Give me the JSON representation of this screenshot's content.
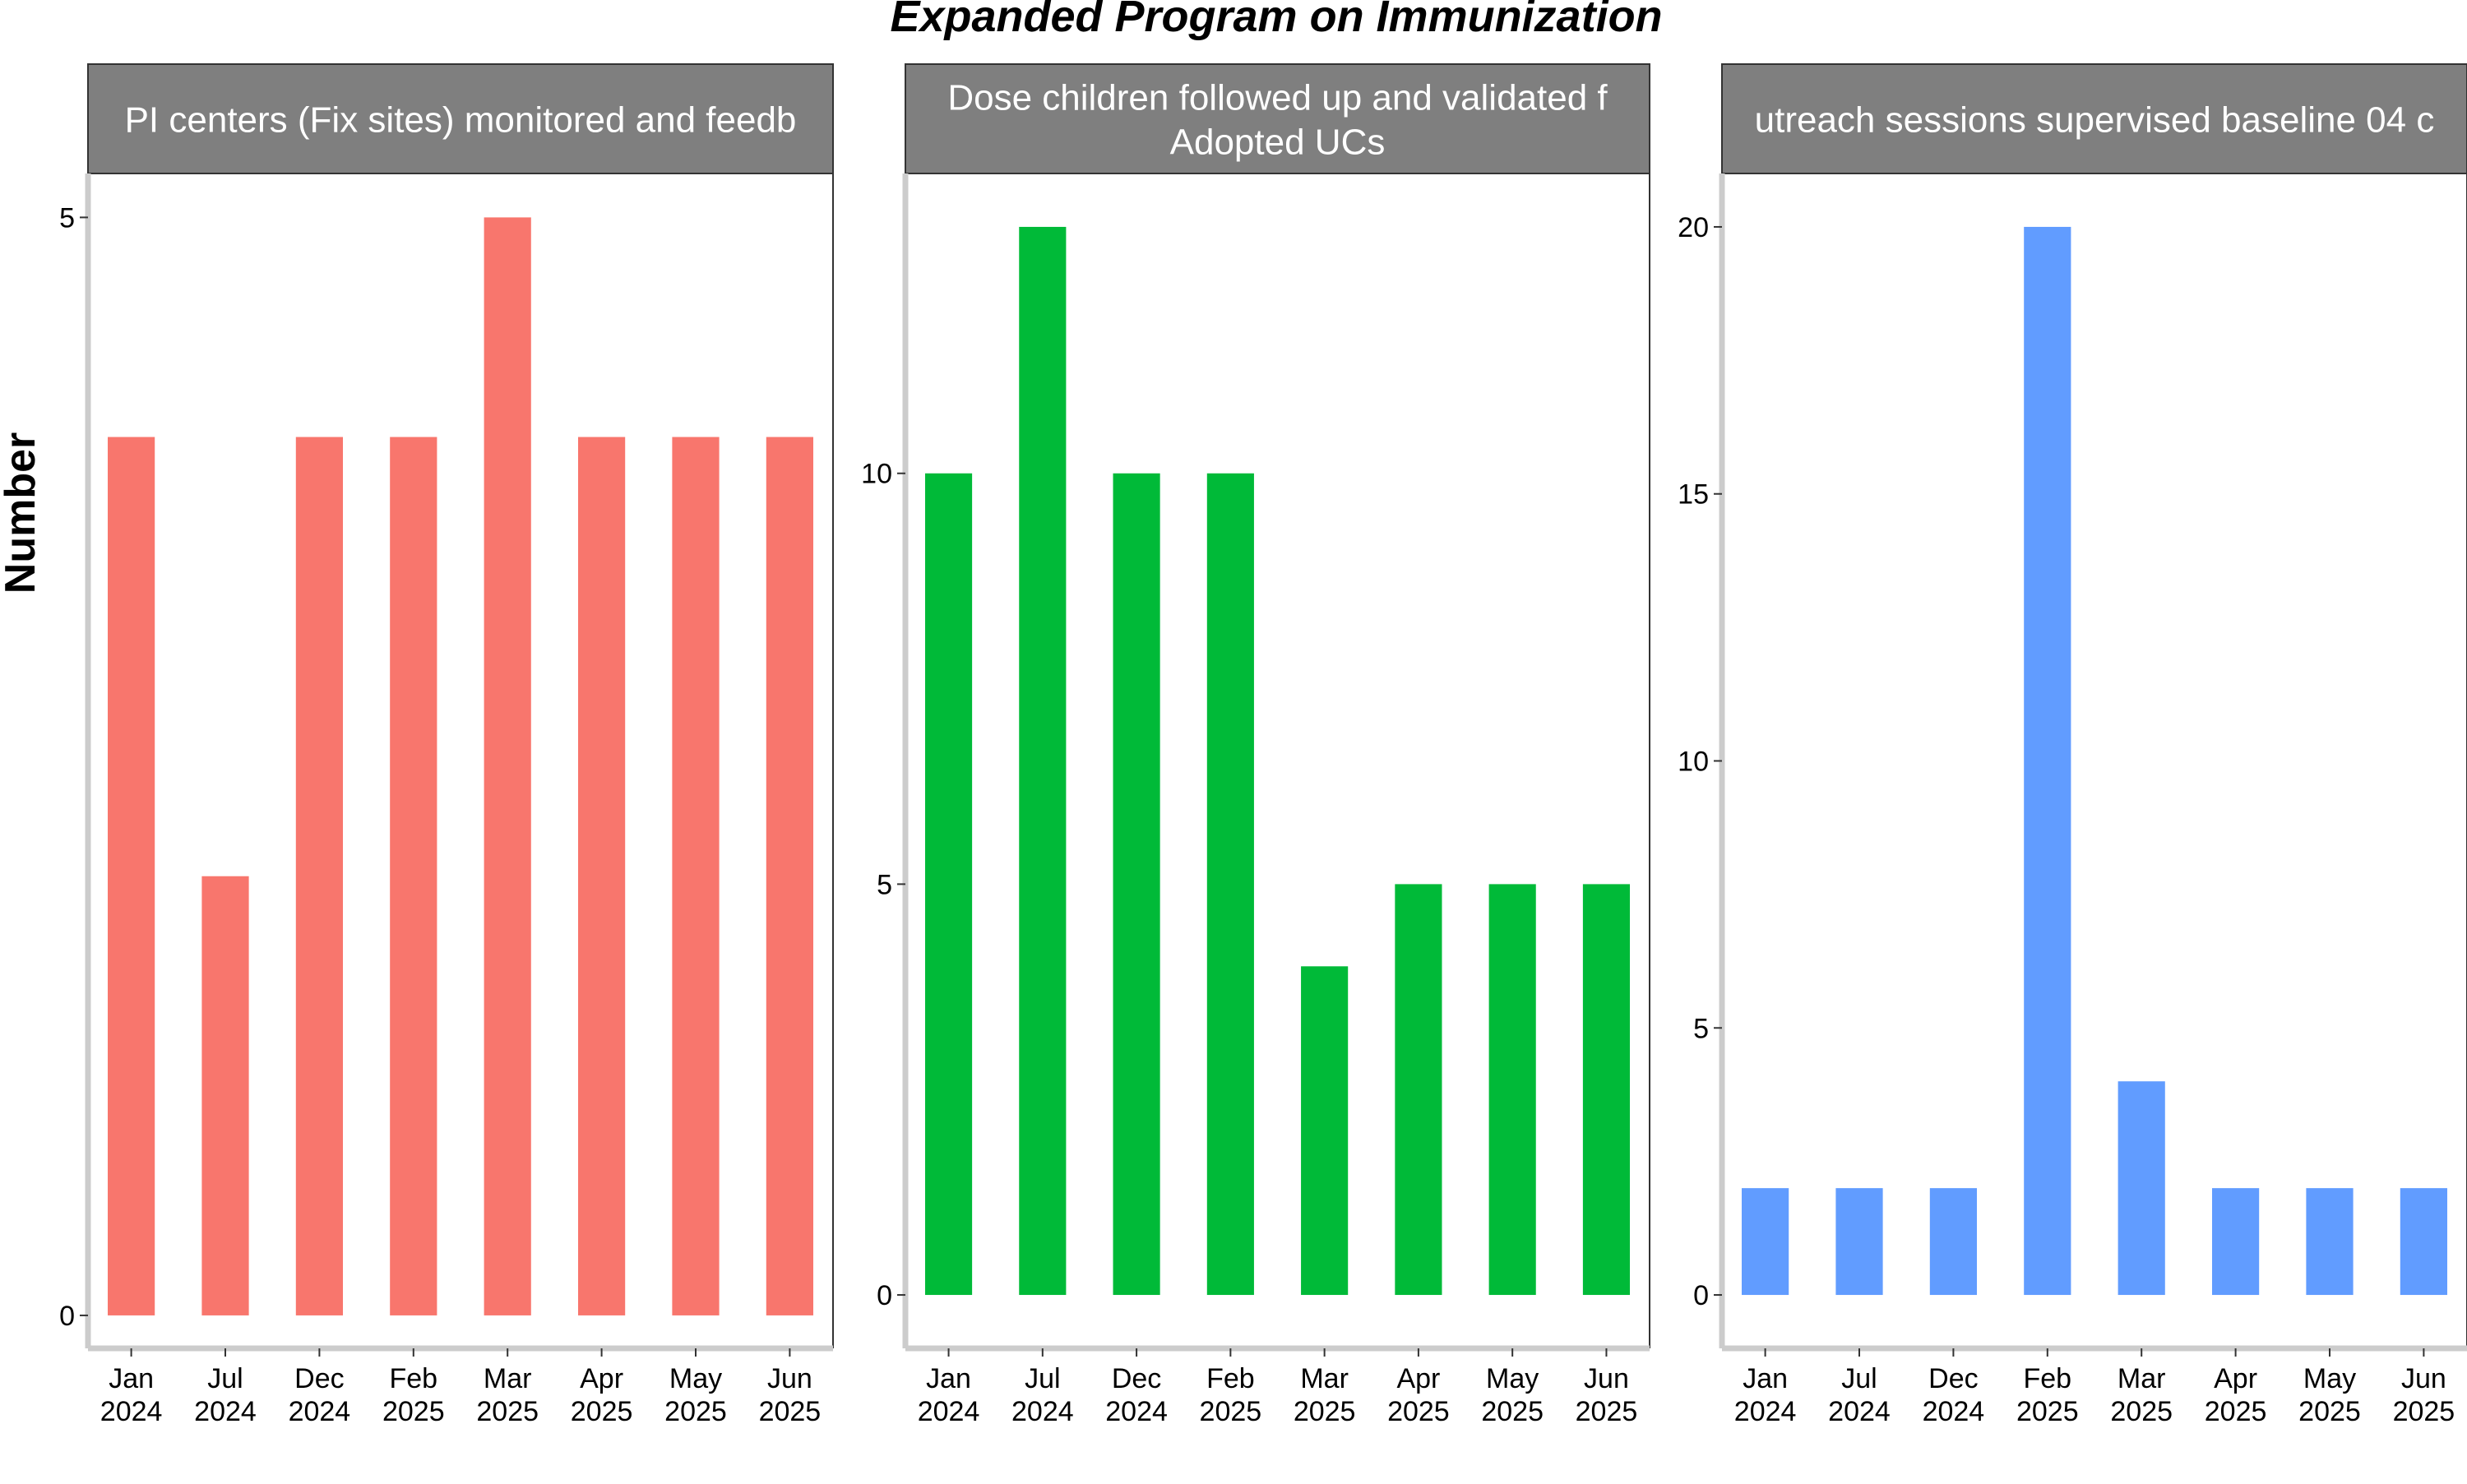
{
  "title": "Expanded Program on Immunization",
  "ylabel": "Number",
  "x_ticks": [
    {
      "month": "Jan",
      "year": "2024"
    },
    {
      "month": "Jul",
      "year": "2024"
    },
    {
      "month": "Dec",
      "year": "2024"
    },
    {
      "month": "Feb",
      "year": "2025"
    },
    {
      "month": "Mar",
      "year": "2025"
    },
    {
      "month": "Apr",
      "year": "2025"
    },
    {
      "month": "May",
      "year": "2025"
    },
    {
      "month": "Jun",
      "year": "2025"
    }
  ],
  "chart_data": [
    {
      "type": "bar",
      "strip_label": [
        "PI centers (Fix sites) monitored and feedb"
      ],
      "categories": [
        "Jan 2024",
        "Jul 2024",
        "Dec 2024",
        "Feb 2025",
        "Mar 2025",
        "Apr 2025",
        "May 2025",
        "Jun 2025"
      ],
      "values": [
        4,
        2,
        4,
        4,
        5,
        4,
        4,
        4
      ],
      "ylim": [
        -0.15,
        5.2
      ],
      "yticks": [
        0,
        5
      ],
      "color": "#F8766D"
    },
    {
      "type": "bar",
      "strip_label": [
        "Dose children followed up and validated f",
        "Adopted UCs"
      ],
      "categories": [
        "Jan 2024",
        "Jul 2024",
        "Dec 2024",
        "Feb 2025",
        "Mar 2025",
        "Apr 2025",
        "May 2025",
        "Jun 2025"
      ],
      "values": [
        10,
        13,
        10,
        10,
        4,
        5,
        5,
        5
      ],
      "ylim": [
        -0.65,
        13.65
      ],
      "yticks": [
        0,
        5,
        10
      ],
      "color": "#00BA38"
    },
    {
      "type": "bar",
      "strip_label": [
        "utreach sessions supervised baseline 04 c"
      ],
      "categories": [
        "Jan 2024",
        "Jul 2024",
        "Dec 2024",
        "Feb 2025",
        "Mar 2025",
        "Apr 2025",
        "May 2025",
        "Jun 2025"
      ],
      "values": [
        2,
        2,
        2,
        20,
        4,
        2,
        2,
        2
      ],
      "ylim": [
        -1.0,
        21.0
      ],
      "yticks": [
        0,
        5,
        10,
        15,
        20
      ],
      "color": "#619CFF"
    }
  ]
}
